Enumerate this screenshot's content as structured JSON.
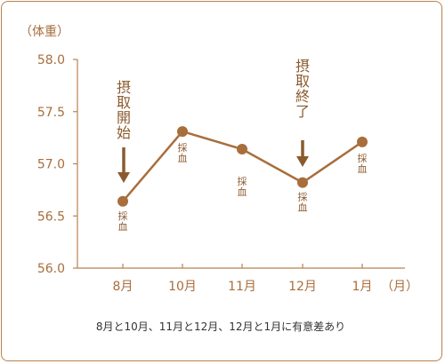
{
  "chart_data": {
    "type": "line",
    "ylabel": "（体重）",
    "xunit": "（月）",
    "categories": [
      "8月",
      "10月",
      "11月",
      "12月",
      "1月"
    ],
    "ylim": [
      56.0,
      58.0
    ],
    "yticks": [
      "58.0",
      "57.5",
      "57.0",
      "56.5",
      "56.0"
    ],
    "series": [
      {
        "values": [
          56.64,
          57.31,
          57.14,
          56.82,
          57.21
        ]
      }
    ],
    "point_labels": [
      "採血",
      "採血",
      "採血",
      "採血",
      "採血"
    ],
    "annotations": [
      {
        "text": "摂取開始",
        "at": "8月"
      },
      {
        "text": "摂取終了",
        "at": "12月"
      }
    ],
    "footnote": "8月と10月、11月と12月、12月と1月に有意差あり",
    "colors": {
      "line": "#a86e3c",
      "axis": "#b8824e",
      "text": "#a86e3c"
    }
  }
}
